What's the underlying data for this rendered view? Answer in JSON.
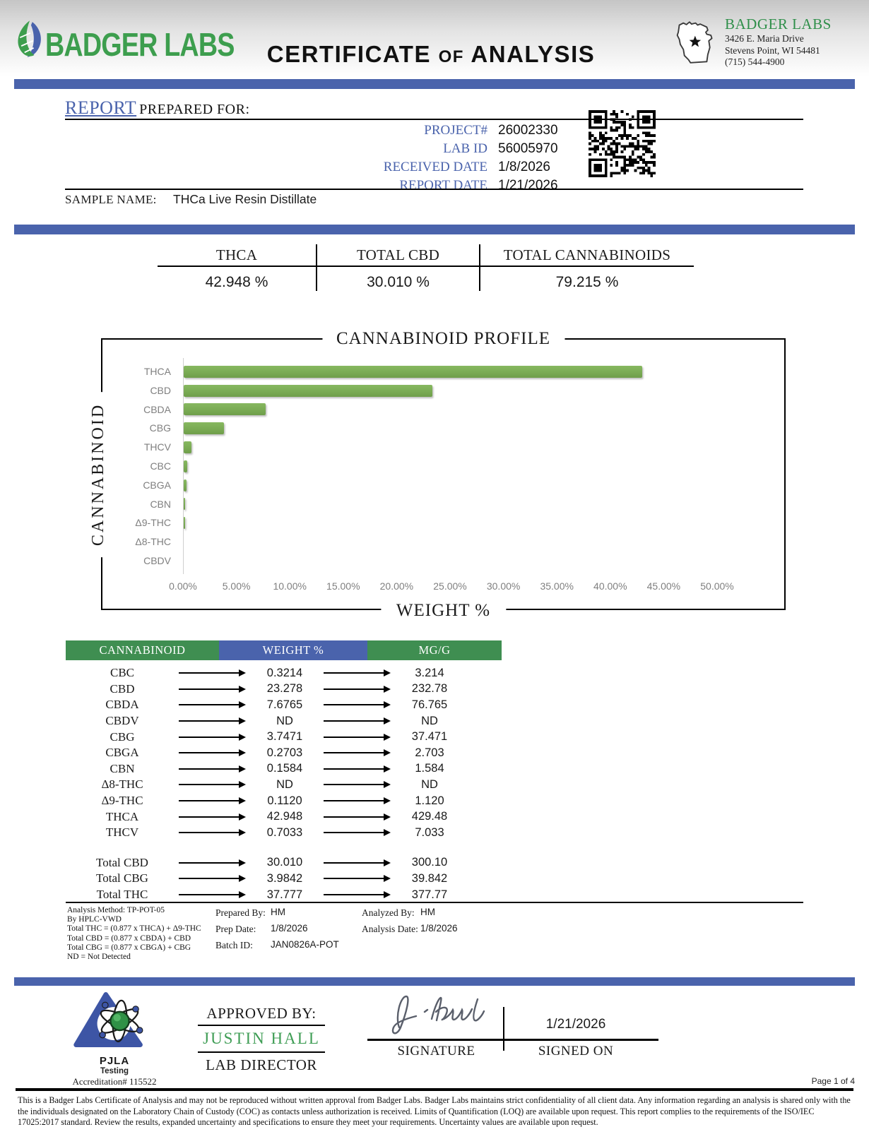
{
  "header": {
    "brand_text": "BADGER LABS",
    "doc_title_1": "CERTIFICATE",
    "doc_title_of": "OF",
    "doc_title_2": "ANALYSIS",
    "lab_name": "BADGER LABS",
    "address1": "3426 E. Maria Drive",
    "address2": "Stevens Point, WI 54481",
    "phone": "(715) 544-4900"
  },
  "report": {
    "heading_word": "REPORT",
    "heading_rest": "PREPARED FOR:",
    "fields": [
      {
        "label": "PROJECT#",
        "value": "26002330"
      },
      {
        "label": "LAB ID",
        "value": "56005970"
      },
      {
        "label": "RECEIVED DATE",
        "value": "1/8/2026"
      },
      {
        "label": "REPORT DATE",
        "value": "1/21/2026"
      }
    ],
    "sample_label": "SAMPLE NAME:",
    "sample_value": "THCa Live Resin Distillate"
  },
  "summary": {
    "columns": [
      {
        "label": "THCA",
        "value": "42.948 %"
      },
      {
        "label": "TOTAL CBD",
        "value": "30.010 %"
      },
      {
        "label": "TOTAL CANNABINOIDS",
        "value": "79.215 %"
      }
    ]
  },
  "chart_data": {
    "type": "bar",
    "orientation": "horizontal",
    "title": "CANNABINOID PROFILE",
    "xlabel": "WEIGHT %",
    "ylabel": "CANNABINOID",
    "categories": [
      "THCA",
      "CBD",
      "CBDA",
      "CBG",
      "THCV",
      "CBC",
      "CBGA",
      "CBN",
      "Δ9-THC",
      "Δ8-THC",
      "CBDV"
    ],
    "values": [
      42.948,
      23.278,
      7.6765,
      3.7471,
      0.7033,
      0.3214,
      0.2703,
      0.1584,
      0.112,
      0,
      0
    ],
    "xlim": [
      0,
      50
    ],
    "xticks": [
      "0.00%",
      "5.00%",
      "10.00%",
      "15.00%",
      "20.00%",
      "25.00%",
      "30.00%",
      "35.00%",
      "40.00%",
      "45.00%",
      "50.00%"
    ],
    "grid": false,
    "legend": "none",
    "bar_color": "#7cae58"
  },
  "results_table": {
    "headers": [
      "CANNABINOID",
      "WEIGHT %",
      "MG/G"
    ],
    "rows": [
      {
        "name": "CBC",
        "weight": "0.3214",
        "mgg": "3.214"
      },
      {
        "name": "CBD",
        "weight": "23.278",
        "mgg": "232.78"
      },
      {
        "name": "CBDA",
        "weight": "7.6765",
        "mgg": "76.765"
      },
      {
        "name": "CBDV",
        "weight": "ND",
        "mgg": "ND"
      },
      {
        "name": "CBG",
        "weight": "3.7471",
        "mgg": "37.471"
      },
      {
        "name": "CBGA",
        "weight": "0.2703",
        "mgg": "2.703"
      },
      {
        "name": "CBN",
        "weight": "0.1584",
        "mgg": "1.584"
      },
      {
        "name": "Δ8-THC",
        "weight": "ND",
        "mgg": "ND"
      },
      {
        "name": "Δ9-THC",
        "weight": "0.1120",
        "mgg": "1.120"
      },
      {
        "name": "THCA",
        "weight": "42.948",
        "mgg": "429.48"
      },
      {
        "name": "THCV",
        "weight": "0.7033",
        "mgg": "7.033"
      }
    ],
    "totals": [
      {
        "name": "Total CBD",
        "weight": "30.010",
        "mgg": "300.10"
      },
      {
        "name": "Total CBG",
        "weight": "3.9842",
        "mgg": "39.842"
      },
      {
        "name": "Total THC",
        "weight": "37.777",
        "mgg": "377.77"
      }
    ]
  },
  "method_notes": {
    "lines": [
      "Analysis Method: TP-POT-05",
      "By HPLC-VWD",
      "Total THC = (0.877 x  THCA) + Δ9-THC",
      "Total CBD = (0.877 x  CBDA) + CBD",
      "Total CBG = (0.877 x  CBGA) + CBG",
      "ND = Not Detected"
    ],
    "prepared_by_label": "Prepared By:",
    "prepared_by": "HM",
    "prep_date_label": "Prep Date:",
    "prep_date": "1/8/2026",
    "batch_id_label": "Batch ID:",
    "batch_id": "JAN0826A-POT",
    "analyzed_by_label": "Analyzed By:",
    "analyzed_by": "HM",
    "analysis_date_label": "Analysis Date:",
    "analysis_date": "1/8/2026"
  },
  "approval": {
    "pjla_name": "PJLA",
    "pjla_testing": "Testing",
    "accreditation": "Accreditation# 115522",
    "approved_by_label": "APPROVED BY:",
    "approver_name": "JUSTIN HALL",
    "approver_title": "LAB DIRECTOR",
    "signature_label": "SIGNATURE",
    "signed_on_label": "SIGNED ON",
    "signed_date": "1/21/2026"
  },
  "footer": {
    "page": "Page 1 of 4",
    "disclaimer": "This is a Badger Labs Certificate of Analysis and may not be reproduced without written approval from Badger Labs. Badger Labs maintains strict confidentiality of all client data. Any information regarding an analysis is shared only with the the individuals designated on the Laboratory Chain of Custody (COC) as contacts unless authorization is received. Limits of Quantification (LOQ) are available upon request. This report complies to the requirements of the ISO/IEC 17025:2017 standard. Review the results, expanded uncertainty and specifications to ensure they meet your requirements. Uncertainty values are available upon request."
  },
  "colors": {
    "accent_blue": "#4a63ac",
    "table_green": "#3f8e51",
    "bar_green": "#7cae58",
    "brand_green": "#3d9e4e",
    "approver_green": "#3f9d55"
  }
}
